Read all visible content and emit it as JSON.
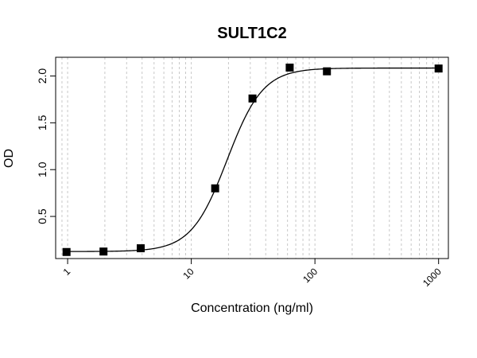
{
  "chart_data": {
    "type": "scatter",
    "title": "SULT1C2",
    "xlabel": "Concentration (ng/ml)",
    "ylabel": "OD",
    "x_scale": "log",
    "xlim": [
      0.8,
      1200
    ],
    "ylim": [
      0.05,
      2.2
    ],
    "x_ticks": [
      1,
      10,
      100,
      1000
    ],
    "x_tick_labels": [
      "1",
      "10",
      "100",
      "1000"
    ],
    "y_ticks": [
      0.5,
      1.0,
      1.5,
      2.0
    ],
    "y_tick_labels": [
      "0.5",
      "1.0",
      "1.5",
      "2.0"
    ],
    "grid": "vertical, dashed, log minor",
    "legend": "none",
    "marker": "square",
    "points": [
      {
        "x": 0.98,
        "y": 0.12
      },
      {
        "x": 1.95,
        "y": 0.125
      },
      {
        "x": 3.9,
        "y": 0.16
      },
      {
        "x": 15.6,
        "y": 0.8
      },
      {
        "x": 31.25,
        "y": 1.76
      },
      {
        "x": 62.5,
        "y": 2.09
      },
      {
        "x": 125,
        "y": 2.05
      },
      {
        "x": 1000,
        "y": 2.08
      }
    ],
    "fit": {
      "type": "4PL",
      "bottom": 0.125,
      "top": 2.085,
      "ec50": 19.5,
      "hill": 3.0
    }
  }
}
